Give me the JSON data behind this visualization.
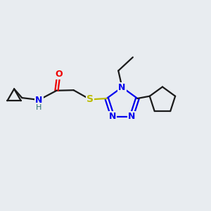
{
  "bg_color": "#e8ecf0",
  "bond_color": "#1a1a1a",
  "N_color": "#0000ee",
  "O_color": "#ee0000",
  "S_color": "#bbbb00",
  "line_width": 1.6,
  "font_size": 9,
  "fig_size": [
    3.0,
    3.0
  ],
  "dpi": 100,
  "xlim": [
    0,
    10
  ],
  "ylim": [
    0,
    10
  ]
}
